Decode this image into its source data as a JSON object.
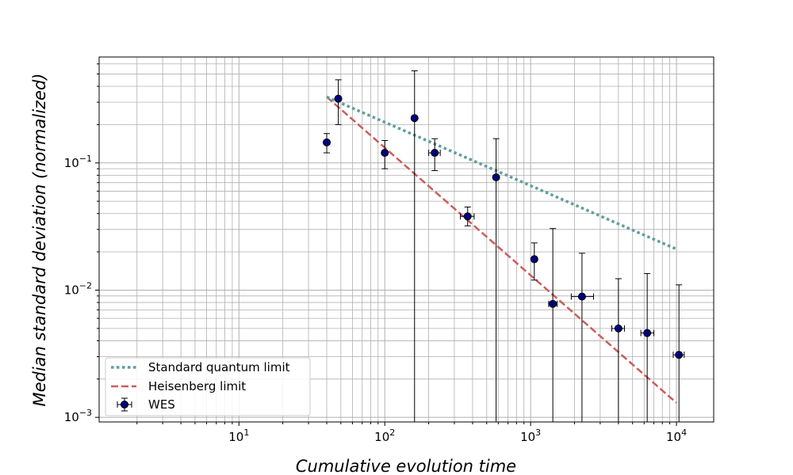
{
  "chart_data": {
    "type": "scatter",
    "title": "",
    "xlabel": "Cumulative evolution time",
    "ylabel": "Median standard deviation (normalized)",
    "xscale": "log",
    "yscale": "log",
    "xlim": [
      1.1,
      18000
    ],
    "ylim": [
      0.00092,
      0.68
    ],
    "grid": "both (major and minor)",
    "legend_placement": "lower-left",
    "x_ticks": [
      {
        "value": 10,
        "base": "10",
        "exp": "1"
      },
      {
        "value": 100,
        "base": "10",
        "exp": "2"
      },
      {
        "value": 1000,
        "base": "10",
        "exp": "3"
      },
      {
        "value": 10000,
        "base": "10",
        "exp": "4"
      }
    ],
    "y_ticks": [
      {
        "value": 0.001,
        "base": "10",
        "exp": "−3"
      },
      {
        "value": 0.01,
        "base": "10",
        "exp": "−2"
      },
      {
        "value": 0.1,
        "base": "10",
        "exp": "−1"
      }
    ],
    "series": [
      {
        "name": "Standard quantum limit",
        "style": "dotted",
        "color": "#5f9e9b",
        "x": [
          40,
          10000
        ],
        "y": [
          0.33,
          0.021
        ]
      },
      {
        "name": "Heisenberg limit",
        "style": "dashed",
        "color": "#cd5c5c",
        "x": [
          40,
          10000
        ],
        "y": [
          0.33,
          0.0013
        ]
      },
      {
        "name": "WES",
        "style": "errorbar",
        "color": "#000080",
        "points": [
          {
            "x": 40,
            "y": 0.145,
            "ylo": 0.12,
            "yhi": 0.17,
            "xlo": 40,
            "xhi": 40
          },
          {
            "x": 48,
            "y": 0.32,
            "ylo": 0.2,
            "yhi": 0.45,
            "xlo": 47,
            "xhi": 49
          },
          {
            "x": 100,
            "y": 0.12,
            "ylo": 0.09,
            "yhi": 0.15,
            "xlo": 99,
            "xhi": 101
          },
          {
            "x": 160,
            "y": 0.225,
            "ylo": 0.0009,
            "yhi": 0.53,
            "xlo": 160,
            "xhi": 160
          },
          {
            "x": 220,
            "y": 0.12,
            "ylo": 0.087,
            "yhi": 0.155,
            "xlo": 200,
            "xhi": 240
          },
          {
            "x": 370,
            "y": 0.038,
            "ylo": 0.032,
            "yhi": 0.045,
            "xlo": 330,
            "xhi": 410
          },
          {
            "x": 580,
            "y": 0.077,
            "ylo": 0.0009,
            "yhi": 0.155,
            "xlo": 565,
            "xhi": 595
          },
          {
            "x": 1060,
            "y": 0.0175,
            "ylo": 0.012,
            "yhi": 0.0235,
            "xlo": 1030,
            "xhi": 1100
          },
          {
            "x": 1420,
            "y": 0.0078,
            "ylo": 0.0009,
            "yhi": 0.0305,
            "xlo": 1330,
            "xhi": 1520
          },
          {
            "x": 2250,
            "y": 0.0089,
            "ylo": 0.0009,
            "yhi": 0.0195,
            "xlo": 1900,
            "xhi": 2700
          },
          {
            "x": 4000,
            "y": 0.005,
            "ylo": 0.0009,
            "yhi": 0.0123,
            "xlo": 3600,
            "xhi": 4400
          },
          {
            "x": 6300,
            "y": 0.0046,
            "ylo": 0.0009,
            "yhi": 0.0135,
            "xlo": 5700,
            "xhi": 7000
          },
          {
            "x": 10400,
            "y": 0.0031,
            "ylo": 0.0009,
            "yhi": 0.011,
            "xlo": 9500,
            "xhi": 11300
          }
        ]
      }
    ]
  }
}
